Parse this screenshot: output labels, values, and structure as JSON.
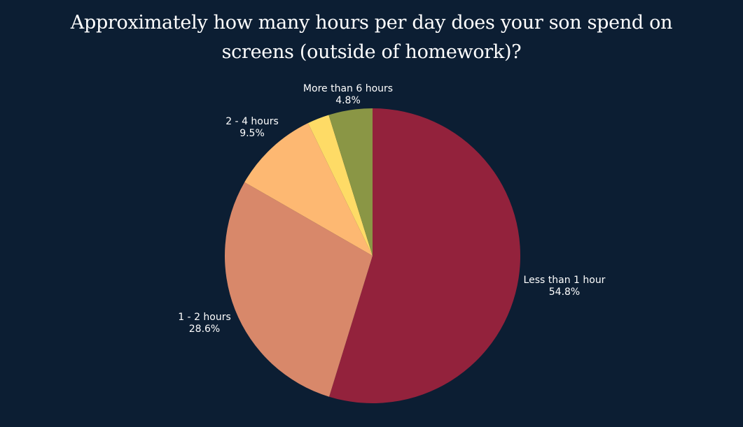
{
  "chart_data": {
    "type": "pie",
    "title": "Approximately how many hours per day does your son spend on screens (outside of homework)?",
    "slices": [
      {
        "label": "Less than 1 hour",
        "value": 54.8,
        "value_label": "54.8%",
        "color": "#93223c"
      },
      {
        "label": "1 - 2 hours",
        "value": 28.6,
        "value_label": "28.6%",
        "color": "#d8886a"
      },
      {
        "label": "2 - 4 hours",
        "value": 9.5,
        "value_label": "9.5%",
        "color": "#fdb872"
      },
      {
        "label": "",
        "value": 2.4,
        "value_label": "",
        "color": "#fedb66"
      },
      {
        "label": "More than 6 hours",
        "value": 4.8,
        "value_label": "4.8%",
        "color": "#8a9645"
      }
    ],
    "start": "top",
    "direction": "clockwise",
    "legend": "none"
  }
}
